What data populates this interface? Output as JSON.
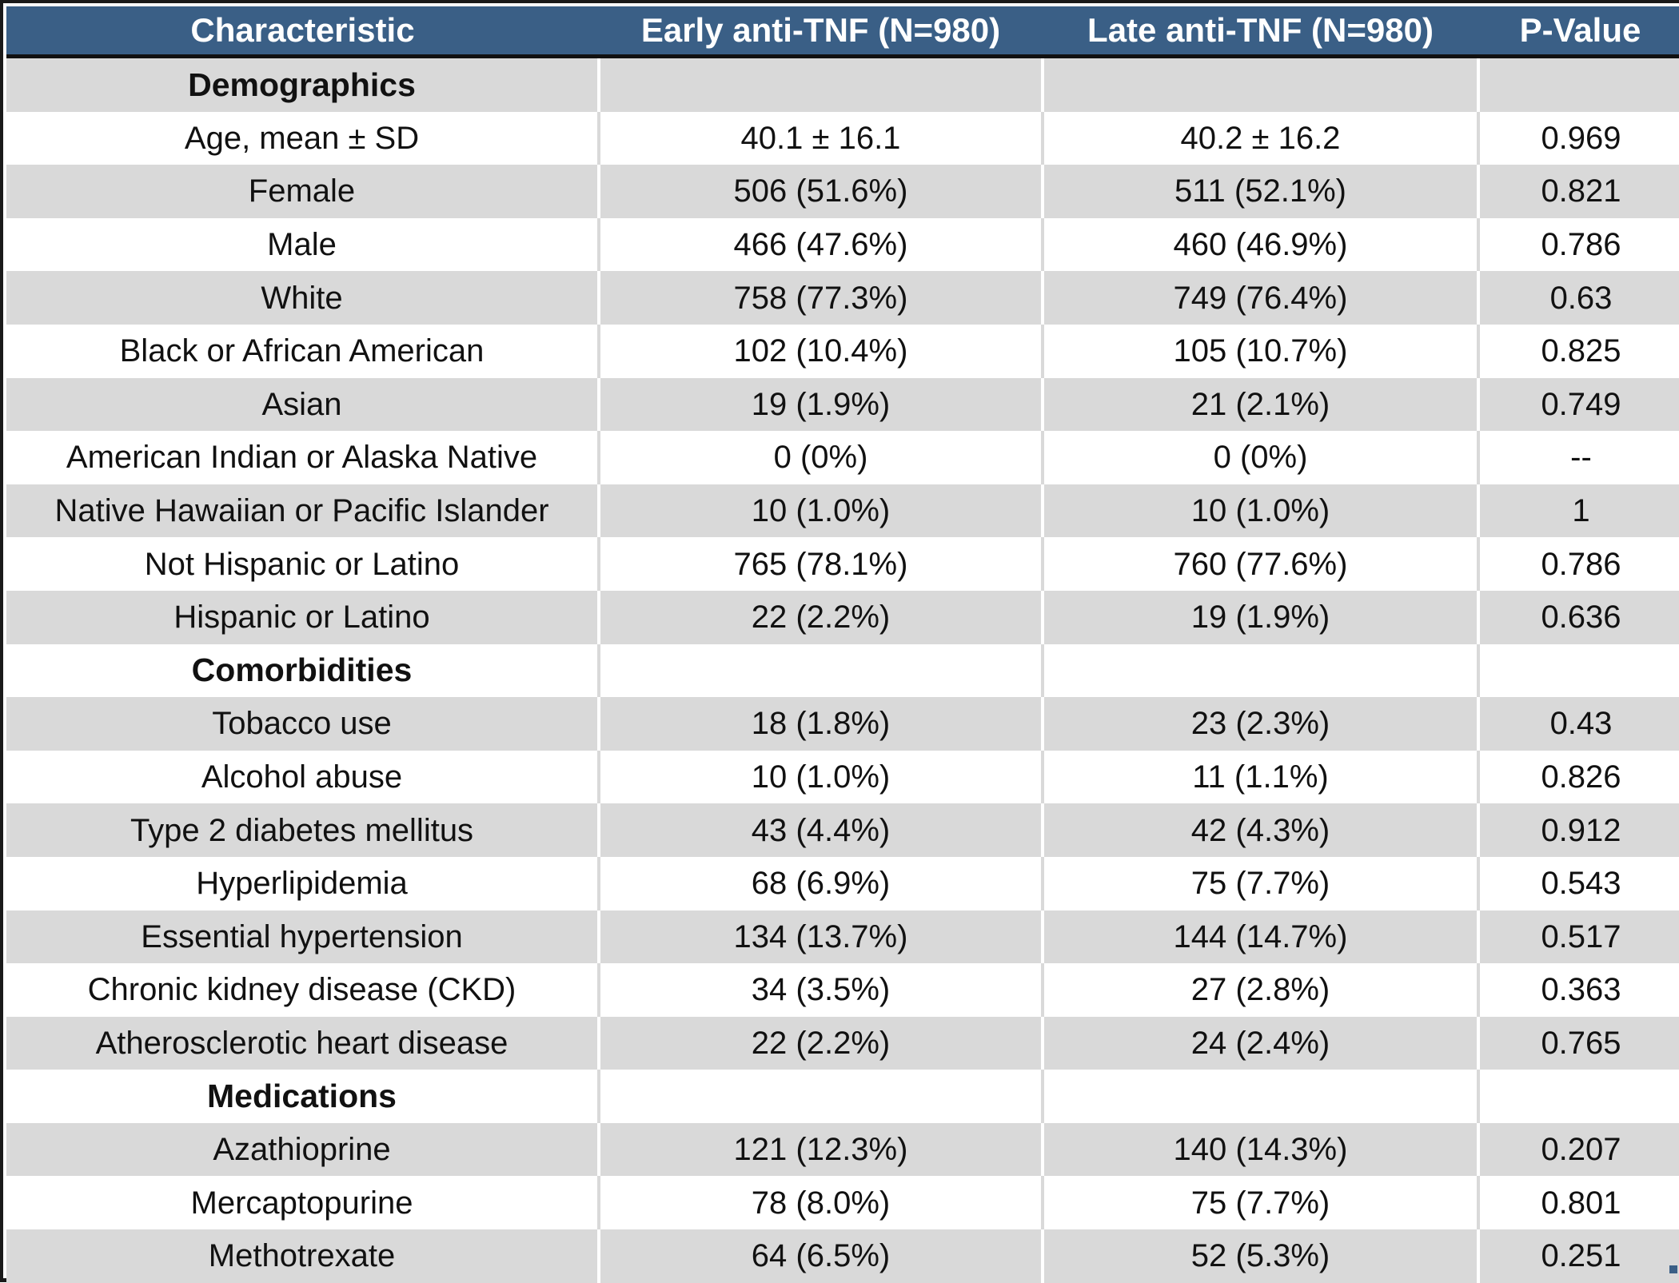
{
  "table": {
    "headers": [
      "Characteristic",
      "Early anti-TNF (N=980)",
      "Late anti-TNF (N=980)",
      "P-Value"
    ],
    "rows": [
      {
        "type": "section",
        "label": "Demographics",
        "early": "",
        "late": "",
        "p": ""
      },
      {
        "type": "data",
        "label": "Age, mean ± SD",
        "early": "40.1 ± 16.1",
        "late": "40.2 ± 16.2",
        "p": "0.969"
      },
      {
        "type": "data",
        "label": "Female",
        "early": "506 (51.6%)",
        "late": "511 (52.1%)",
        "p": "0.821"
      },
      {
        "type": "data",
        "label": "Male",
        "early": "466 (47.6%)",
        "late": "460 (46.9%)",
        "p": "0.786"
      },
      {
        "type": "data",
        "label": "White",
        "early": "758 (77.3%)",
        "late": "749 (76.4%)",
        "p": "0.63"
      },
      {
        "type": "data",
        "label": "Black or African American",
        "early": "102 (10.4%)",
        "late": "105 (10.7%)",
        "p": "0.825"
      },
      {
        "type": "data",
        "label": "Asian",
        "early": "19 (1.9%)",
        "late": "21 (2.1%)",
        "p": "0.749"
      },
      {
        "type": "data",
        "label": "American Indian or Alaska Native",
        "early": "0 (0%)",
        "late": "0 (0%)",
        "p": "--"
      },
      {
        "type": "data",
        "label": "Native Hawaiian or Pacific Islander",
        "early": "10 (1.0%)",
        "late": "10 (1.0%)",
        "p": "1"
      },
      {
        "type": "data",
        "label": "Not Hispanic or Latino",
        "early": "765 (78.1%)",
        "late": "760 (77.6%)",
        "p": "0.786"
      },
      {
        "type": "data",
        "label": "Hispanic or Latino",
        "early": "22 (2.2%)",
        "late": "19 (1.9%)",
        "p": "0.636"
      },
      {
        "type": "section",
        "label": "Comorbidities",
        "early": "",
        "late": "",
        "p": ""
      },
      {
        "type": "data",
        "label": "Tobacco use",
        "early": "18 (1.8%)",
        "late": "23 (2.3%)",
        "p": "0.43"
      },
      {
        "type": "data",
        "label": "Alcohol abuse",
        "early": "10 (1.0%)",
        "late": "11 (1.1%)",
        "p": "0.826"
      },
      {
        "type": "data",
        "label": "Type 2 diabetes mellitus",
        "early": "43 (4.4%)",
        "late": "42 (4.3%)",
        "p": "0.912"
      },
      {
        "type": "data",
        "label": "Hyperlipidemia",
        "early": "68 (6.9%)",
        "late": "75 (7.7%)",
        "p": "0.543"
      },
      {
        "type": "data",
        "label": "Essential hypertension",
        "early": "134 (13.7%)",
        "late": "144 (14.7%)",
        "p": "0.517"
      },
      {
        "type": "data",
        "label": "Chronic kidney disease (CKD)",
        "early": "34 (3.5%)",
        "late": "27 (2.8%)",
        "p": "0.363"
      },
      {
        "type": "data",
        "label": "Atherosclerotic heart disease",
        "early": "22 (2.2%)",
        "late": "24 (2.4%)",
        "p": "0.765"
      },
      {
        "type": "section",
        "label": "Medications",
        "early": "",
        "late": "",
        "p": ""
      },
      {
        "type": "data",
        "label": "Azathioprine",
        "early": "121 (12.3%)",
        "late": "140 (14.3%)",
        "p": "0.207"
      },
      {
        "type": "data",
        "label": "Mercaptopurine",
        "early": "78 (8.0%)",
        "late": "75 (7.7%)",
        "p": "0.801"
      },
      {
        "type": "data",
        "label": "Methotrexate",
        "early": "64 (6.5%)",
        "late": "52 (5.3%)",
        "p": "0.251"
      }
    ]
  },
  "colors": {
    "header_bg": "#3a5f86",
    "header_text": "#ffffff",
    "row_gray": "#d9d9d9",
    "row_white": "#ffffff"
  }
}
